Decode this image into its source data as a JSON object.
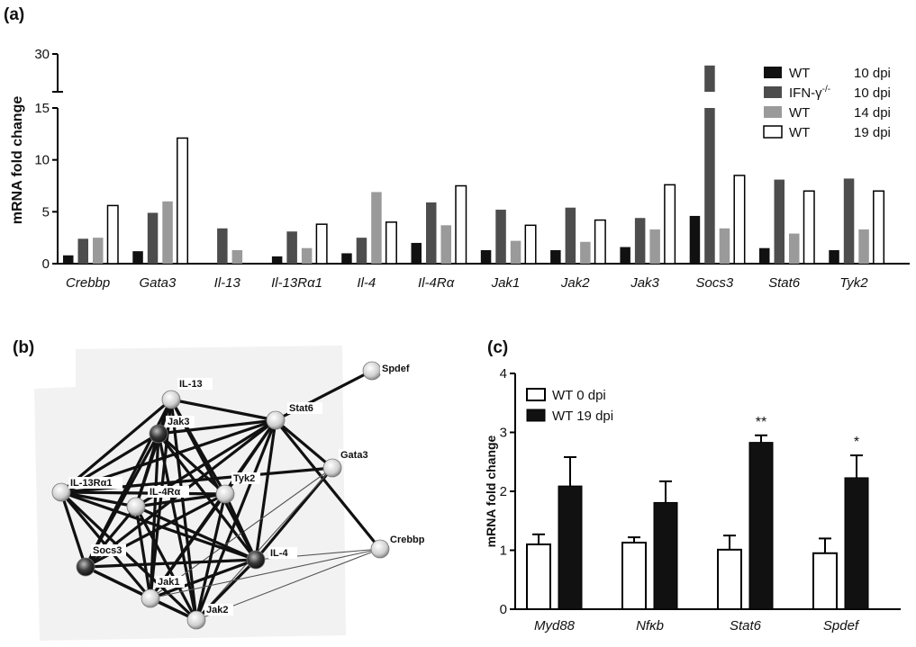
{
  "figure": {
    "panel_a_label": "(a)",
    "panel_b_label": "(b)",
    "panel_c_label": "(c)"
  },
  "colors": {
    "wt10": "#111111",
    "ifn10": "#4d4d4d",
    "wt14": "#9a9a9a",
    "wt19": "#ffffff",
    "outline": "#000000",
    "edge": "#111111",
    "edge_thin": "#555555"
  },
  "chart_data": [
    {
      "panel": "a",
      "type": "bar",
      "ylabel": "mRNA fold change",
      "ylim": [
        0,
        30
      ],
      "axis_break": [
        15,
        30
      ],
      "yticks_lower": [
        "0",
        "5",
        "10",
        "15"
      ],
      "yticks_upper": [
        "30"
      ],
      "categories": [
        "Crebbp",
        "Gata3",
        "Il-13",
        "Il-13Rα1",
        "Il-4",
        "Il-4Rα",
        "Jak1",
        "Jak2",
        "Jak3",
        "Socs3",
        "Stat6",
        "Tyk2"
      ],
      "series": [
        {
          "label": "WT",
          "dpi": "10 dpi",
          "color_key": "wt10",
          "values": [
            0.8,
            1.2,
            null,
            0.7,
            1.0,
            2.0,
            1.3,
            1.3,
            1.6,
            4.6,
            1.5,
            1.3
          ]
        },
        {
          "label": "IFN-γ",
          "label_sup": "-/-",
          "dpi": "10 dpi",
          "color_key": "ifn10",
          "values": [
            2.4,
            4.9,
            3.4,
            3.1,
            2.5,
            5.9,
            5.2,
            5.4,
            4.4,
            29,
            8.1,
            8.2
          ]
        },
        {
          "label": "WT",
          "dpi": "14 dpi",
          "color_key": "wt14",
          "values": [
            2.5,
            6.0,
            1.3,
            1.5,
            6.9,
            3.7,
            2.2,
            2.1,
            3.3,
            3.4,
            2.9,
            3.3
          ]
        },
        {
          "label": "WT",
          "dpi": "19 dpi",
          "color_key": "wt19",
          "values": [
            5.6,
            12.1,
            null,
            3.8,
            4.0,
            7.5,
            3.7,
            4.2,
            7.6,
            8.5,
            7.0,
            7.0
          ]
        }
      ]
    },
    {
      "panel": "c",
      "type": "bar",
      "ylabel": "mRNA fold change",
      "ylim": [
        0,
        4
      ],
      "yticks": [
        "0",
        "1",
        "2",
        "3",
        "4"
      ],
      "categories": [
        "Myd88",
        "Nfκb",
        "Stat6",
        "Spdef"
      ],
      "series": [
        {
          "label": "WT 0 dpi",
          "color_key": "wt19",
          "values": [
            1.1,
            1.13,
            1.01,
            0.95
          ],
          "errors": [
            0.17,
            0.09,
            0.24,
            0.25
          ]
        },
        {
          "label": "WT 19 dpi",
          "color_key": "wt10",
          "values": [
            2.09,
            1.81,
            2.83,
            2.23
          ],
          "errors": [
            0.49,
            0.36,
            0.12,
            0.38
          ]
        }
      ],
      "annotations": [
        "",
        "",
        "**",
        "*"
      ]
    }
  ],
  "network": {
    "nodes": [
      {
        "id": "Spdef",
        "label": "Spdef",
        "shade": "light"
      },
      {
        "id": "IL-13",
        "label": "IL-13",
        "shade": "light"
      },
      {
        "id": "Stat6",
        "label": "Stat6",
        "shade": "light"
      },
      {
        "id": "Jak3",
        "label": "Jak3",
        "shade": "dark"
      },
      {
        "id": "Gata3",
        "label": "Gata3",
        "shade": "light"
      },
      {
        "id": "Tyk2",
        "label": "Tyk2",
        "shade": "light"
      },
      {
        "id": "IL-13Ra1",
        "label": "IL-13Rα1",
        "shade": "light"
      },
      {
        "id": "IL-4Ra",
        "label": "IL-4Rα",
        "shade": "light"
      },
      {
        "id": "Crebbp",
        "label": "Crebbp",
        "shade": "light"
      },
      {
        "id": "Socs3",
        "label": "Socs3",
        "shade": "dark"
      },
      {
        "id": "IL-4",
        "label": "IL-4",
        "shade": "dark"
      },
      {
        "id": "Jak1",
        "label": "Jak1",
        "shade": "light"
      },
      {
        "id": "Jak2",
        "label": "Jak2",
        "shade": "light"
      }
    ],
    "edges": [
      [
        "Spdef",
        "Stat6",
        1
      ],
      [
        "IL-13",
        "Jak3",
        1
      ],
      [
        "IL-13",
        "Stat6",
        1
      ],
      [
        "IL-13",
        "IL-13Ra1",
        1
      ],
      [
        "IL-13",
        "IL-4Ra",
        1
      ],
      [
        "IL-13",
        "Socs3",
        1
      ],
      [
        "IL-13",
        "Jak1",
        1
      ],
      [
        "IL-13",
        "Jak2",
        1
      ],
      [
        "IL-13",
        "IL-4",
        1
      ],
      [
        "IL-13",
        "Tyk2",
        1
      ],
      [
        "Stat6",
        "Jak3",
        1
      ],
      [
        "Stat6",
        "Gata3",
        1
      ],
      [
        "Stat6",
        "Tyk2",
        1
      ],
      [
        "Stat6",
        "IL-13Ra1",
        1
      ],
      [
        "Stat6",
        "IL-4Ra",
        1
      ],
      [
        "Stat6",
        "Socs3",
        1
      ],
      [
        "Stat6",
        "IL-4",
        1
      ],
      [
        "Stat6",
        "Jak1",
        1
      ],
      [
        "Stat6",
        "Jak2",
        1
      ],
      [
        "Stat6",
        "Crebbp",
        1
      ],
      [
        "Jak3",
        "IL-13Ra1",
        1
      ],
      [
        "Jak3",
        "IL-4Ra",
        1
      ],
      [
        "Jak3",
        "Socs3",
        1
      ],
      [
        "Jak3",
        "IL-4",
        1
      ],
      [
        "Jak3",
        "Jak1",
        1
      ],
      [
        "Jak3",
        "Jak2",
        1
      ],
      [
        "Jak3",
        "Tyk2",
        1
      ],
      [
        "Gata3",
        "IL-4",
        1
      ],
      [
        "Gata3",
        "IL-13Ra1",
        1
      ],
      [
        "Gata3",
        "Jak2",
        0
      ],
      [
        "Gata3",
        "Jak1",
        0
      ],
      [
        "Tyk2",
        "IL-13Ra1",
        1
      ],
      [
        "Tyk2",
        "IL-4Ra",
        1
      ],
      [
        "Tyk2",
        "IL-4",
        1
      ],
      [
        "Tyk2",
        "Jak1",
        1
      ],
      [
        "Tyk2",
        "Jak2",
        1
      ],
      [
        "Tyk2",
        "Socs3",
        1
      ],
      [
        "IL-13Ra1",
        "IL-4Ra",
        1
      ],
      [
        "IL-13Ra1",
        "Socs3",
        1
      ],
      [
        "IL-13Ra1",
        "Jak1",
        1
      ],
      [
        "IL-13Ra1",
        "Jak2",
        1
      ],
      [
        "IL-13Ra1",
        "IL-4",
        1
      ],
      [
        "IL-4Ra",
        "Socs3",
        1
      ],
      [
        "IL-4Ra",
        "IL-4",
        1
      ],
      [
        "IL-4Ra",
        "Jak1",
        1
      ],
      [
        "IL-4Ra",
        "Jak2",
        1
      ],
      [
        "Socs3",
        "IL-4",
        1
      ],
      [
        "Socs3",
        "Jak1",
        1
      ],
      [
        "Socs3",
        "Jak2",
        1
      ],
      [
        "IL-4",
        "Jak1",
        1
      ],
      [
        "IL-4",
        "Jak2",
        1
      ],
      [
        "IL-4",
        "Crebbp",
        0
      ],
      [
        "Jak1",
        "Jak2",
        1
      ],
      [
        "Jak1",
        "Crebbp",
        0
      ],
      [
        "Jak2",
        "Crebbp",
        0
      ]
    ]
  }
}
